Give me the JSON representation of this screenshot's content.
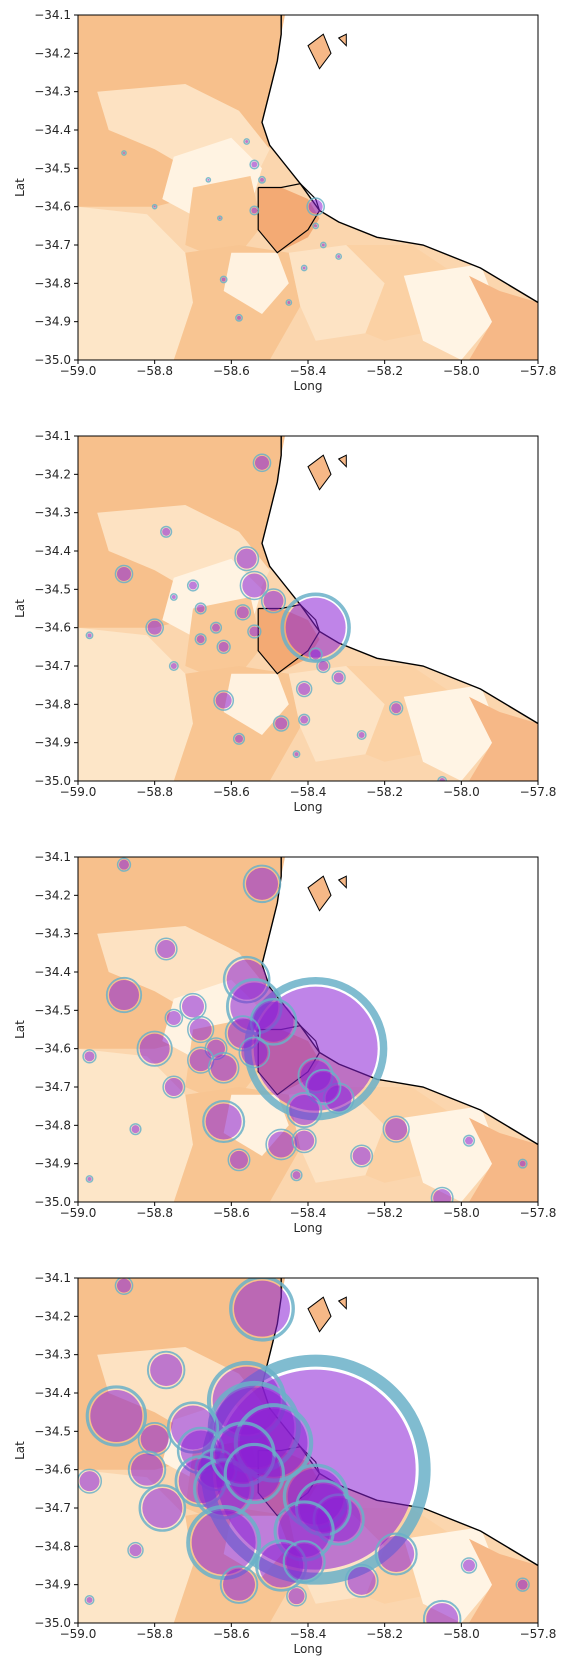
{
  "chart_data": [
    {
      "type": "scatter",
      "xlabel": "Long",
      "ylabel": "Lat",
      "xlim": [
        -59.0,
        -57.8
      ],
      "ylim": [
        -35.0,
        -34.1
      ],
      "xticks": [
        "−59.0",
        "−58.8",
        "−58.6",
        "−58.4",
        "−58.2",
        "−58.0",
        "−57.8"
      ],
      "yticks": [
        "−34.1",
        "−34.2",
        "−34.3",
        "−34.4",
        "−34.5",
        "−34.6",
        "−34.7",
        "−34.8",
        "−34.9",
        "−35.0"
      ],
      "bubbles": [
        {
          "x": -58.38,
          "y": -34.6,
          "r": 7
        },
        {
          "x": -58.54,
          "y": -34.49,
          "r": 3
        },
        {
          "x": -58.54,
          "y": -34.61,
          "r": 3
        },
        {
          "x": -58.58,
          "y": -34.89,
          "r": 2
        },
        {
          "x": -58.62,
          "y": -34.79,
          "r": 2
        },
        {
          "x": -58.52,
          "y": -34.53,
          "r": 2
        },
        {
          "x": -58.56,
          "y": -34.43,
          "r": 1.5
        },
        {
          "x": -58.38,
          "y": -34.65,
          "r": 1.5
        },
        {
          "x": -58.32,
          "y": -34.73,
          "r": 1.5
        },
        {
          "x": -58.36,
          "y": -34.7,
          "r": 1.5
        },
        {
          "x": -58.45,
          "y": -34.85,
          "r": 1.5
        },
        {
          "x": -58.41,
          "y": -34.76,
          "r": 1.5
        },
        {
          "x": -58.88,
          "y": -34.46,
          "r": 1
        },
        {
          "x": -58.8,
          "y": -34.6,
          "r": 1
        },
        {
          "x": -58.63,
          "y": -34.63,
          "r": 1
        },
        {
          "x": -58.66,
          "y": -34.53,
          "r": 1
        }
      ]
    },
    {
      "type": "scatter",
      "xlabel": "Long",
      "ylabel": "Lat",
      "xlim": [
        -59.0,
        -57.8
      ],
      "ylim": [
        -35.0,
        -34.1
      ],
      "xticks": [
        "−59.0",
        "−58.8",
        "−58.6",
        "−58.4",
        "−58.2",
        "−58.0",
        "−57.8"
      ],
      "yticks": [
        "−34.1",
        "−34.2",
        "−34.3",
        "−34.4",
        "−34.5",
        "−34.6",
        "−34.7",
        "−34.8",
        "−34.9",
        "−35.0"
      ],
      "bubbles": [
        {
          "x": -58.38,
          "y": -34.6,
          "r": 30
        },
        {
          "x": -58.52,
          "y": -34.17,
          "r": 7
        },
        {
          "x": -58.77,
          "y": -34.35,
          "r": 4
        },
        {
          "x": -58.56,
          "y": -34.42,
          "r": 10
        },
        {
          "x": -58.54,
          "y": -34.49,
          "r": 12
        },
        {
          "x": -58.49,
          "y": -34.53,
          "r": 10
        },
        {
          "x": -58.88,
          "y": -34.46,
          "r": 7
        },
        {
          "x": -58.8,
          "y": -34.6,
          "r": 7
        },
        {
          "x": -58.7,
          "y": -34.49,
          "r": 4
        },
        {
          "x": -58.68,
          "y": -34.55,
          "r": 4
        },
        {
          "x": -58.64,
          "y": -34.6,
          "r": 4
        },
        {
          "x": -58.68,
          "y": -34.63,
          "r": 4
        },
        {
          "x": -58.62,
          "y": -34.65,
          "r": 5
        },
        {
          "x": -58.57,
          "y": -34.56,
          "r": 6
        },
        {
          "x": -58.54,
          "y": -34.61,
          "r": 5
        },
        {
          "x": -58.38,
          "y": -34.67,
          "r": 5
        },
        {
          "x": -58.32,
          "y": -34.73,
          "r": 5
        },
        {
          "x": -58.36,
          "y": -34.7,
          "r": 5
        },
        {
          "x": -58.41,
          "y": -34.76,
          "r": 6
        },
        {
          "x": -58.62,
          "y": -34.79,
          "r": 8
        },
        {
          "x": -58.47,
          "y": -34.85,
          "r": 6
        },
        {
          "x": -58.41,
          "y": -34.84,
          "r": 4
        },
        {
          "x": -58.58,
          "y": -34.89,
          "r": 4
        },
        {
          "x": -58.17,
          "y": -34.81,
          "r": 5
        },
        {
          "x": -58.26,
          "y": -34.88,
          "r": 3
        },
        {
          "x": -58.75,
          "y": -34.52,
          "r": 2
        },
        {
          "x": -58.75,
          "y": -34.7,
          "r": 3
        },
        {
          "x": -58.05,
          "y": -35.0,
          "r": 3
        },
        {
          "x": -58.97,
          "y": -34.62,
          "r": 2
        },
        {
          "x": -58.43,
          "y": -34.93,
          "r": 2
        }
      ]
    },
    {
      "type": "scatter",
      "xlabel": "Long",
      "ylabel": "Lat",
      "xlim": [
        -59.0,
        -57.8
      ],
      "ylim": [
        -35.0,
        -34.1
      ],
      "xticks": [
        "−59.0",
        "−58.8",
        "−58.6",
        "−58.4",
        "−58.2",
        "−58.0",
        "−57.8"
      ],
      "yticks": [
        "−34.1",
        "−34.2",
        "−34.3",
        "−34.4",
        "−34.5",
        "−34.6",
        "−34.7",
        "−34.8",
        "−34.9",
        "−35.0"
      ],
      "bubbles": [
        {
          "x": -58.38,
          "y": -34.6,
          "r": 62
        },
        {
          "x": -58.52,
          "y": -34.17,
          "r": 16
        },
        {
          "x": -58.88,
          "y": -34.12,
          "r": 5
        },
        {
          "x": -58.77,
          "y": -34.34,
          "r": 9
        },
        {
          "x": -58.56,
          "y": -34.42,
          "r": 20
        },
        {
          "x": -58.54,
          "y": -34.49,
          "r": 24
        },
        {
          "x": -58.49,
          "y": -34.53,
          "r": 20
        },
        {
          "x": -58.88,
          "y": -34.46,
          "r": 15
        },
        {
          "x": -58.8,
          "y": -34.6,
          "r": 15
        },
        {
          "x": -58.7,
          "y": -34.49,
          "r": 11
        },
        {
          "x": -58.68,
          "y": -34.55,
          "r": 11
        },
        {
          "x": -58.64,
          "y": -34.6,
          "r": 9
        },
        {
          "x": -58.68,
          "y": -34.63,
          "r": 11
        },
        {
          "x": -58.62,
          "y": -34.65,
          "r": 13
        },
        {
          "x": -58.57,
          "y": -34.56,
          "r": 15
        },
        {
          "x": -58.54,
          "y": -34.61,
          "r": 13
        },
        {
          "x": -58.75,
          "y": -34.52,
          "r": 7
        },
        {
          "x": -58.75,
          "y": -34.7,
          "r": 9
        },
        {
          "x": -58.38,
          "y": -34.67,
          "r": 15
        },
        {
          "x": -58.32,
          "y": -34.73,
          "r": 13
        },
        {
          "x": -58.36,
          "y": -34.7,
          "r": 15
        },
        {
          "x": -58.41,
          "y": -34.76,
          "r": 15
        },
        {
          "x": -58.62,
          "y": -34.79,
          "r": 18
        },
        {
          "x": -58.47,
          "y": -34.85,
          "r": 13
        },
        {
          "x": -58.41,
          "y": -34.84,
          "r": 10
        },
        {
          "x": -58.58,
          "y": -34.89,
          "r": 9
        },
        {
          "x": -58.17,
          "y": -34.81,
          "r": 11
        },
        {
          "x": -58.26,
          "y": -34.88,
          "r": 9
        },
        {
          "x": -58.97,
          "y": -34.62,
          "r": 5
        },
        {
          "x": -58.85,
          "y": -34.81,
          "r": 4
        },
        {
          "x": -58.43,
          "y": -34.93,
          "r": 4
        },
        {
          "x": -58.05,
          "y": -34.99,
          "r": 9
        },
        {
          "x": -57.98,
          "y": -34.84,
          "r": 4
        },
        {
          "x": -57.84,
          "y": -34.9,
          "r": 3
        },
        {
          "x": -58.97,
          "y": -34.94,
          "r": 2
        }
      ]
    },
    {
      "type": "scatter",
      "xlabel": "Long",
      "ylabel": "Lat",
      "xlim": [
        -59.0,
        -57.8
      ],
      "ylim": [
        -35.0,
        -34.1
      ],
      "xticks": [
        "−59.0",
        "−58.8",
        "−58.6",
        "−58.4",
        "−58.2",
        "−58.0",
        "−57.8"
      ],
      "yticks": [
        "−34.1",
        "−34.2",
        "−34.3",
        "−34.4",
        "−34.5",
        "−34.6",
        "−34.7",
        "−34.8",
        "−34.9",
        "−35.0"
      ],
      "bubbles": [
        {
          "x": -58.38,
          "y": -34.6,
          "r": 100
        },
        {
          "x": -58.52,
          "y": -34.18,
          "r": 28
        },
        {
          "x": -58.88,
          "y": -34.12,
          "r": 7
        },
        {
          "x": -58.77,
          "y": -34.34,
          "r": 16
        },
        {
          "x": -58.56,
          "y": -34.42,
          "r": 34
        },
        {
          "x": -58.54,
          "y": -34.49,
          "r": 40
        },
        {
          "x": -58.49,
          "y": -34.53,
          "r": 34
        },
        {
          "x": -58.9,
          "y": -34.46,
          "r": 26
        },
        {
          "x": -58.8,
          "y": -34.52,
          "r": 14
        },
        {
          "x": -58.7,
          "y": -34.49,
          "r": 22
        },
        {
          "x": -58.68,
          "y": -34.55,
          "r": 20
        },
        {
          "x": -58.64,
          "y": -34.6,
          "r": 18
        },
        {
          "x": -58.68,
          "y": -34.63,
          "r": 22
        },
        {
          "x": -58.62,
          "y": -34.65,
          "r": 26
        },
        {
          "x": -58.57,
          "y": -34.56,
          "r": 28
        },
        {
          "x": -58.54,
          "y": -34.61,
          "r": 26
        },
        {
          "x": -58.82,
          "y": -34.6,
          "r": 16
        },
        {
          "x": -58.78,
          "y": -34.7,
          "r": 20
        },
        {
          "x": -58.38,
          "y": -34.67,
          "r": 28
        },
        {
          "x": -58.32,
          "y": -34.73,
          "r": 22
        },
        {
          "x": -58.36,
          "y": -34.7,
          "r": 24
        },
        {
          "x": -58.41,
          "y": -34.76,
          "r": 26
        },
        {
          "x": -58.62,
          "y": -34.79,
          "r": 32
        },
        {
          "x": -58.47,
          "y": -34.85,
          "r": 22
        },
        {
          "x": -58.41,
          "y": -34.84,
          "r": 18
        },
        {
          "x": -58.58,
          "y": -34.9,
          "r": 16
        },
        {
          "x": -58.17,
          "y": -34.82,
          "r": 18
        },
        {
          "x": -58.26,
          "y": -34.89,
          "r": 14
        },
        {
          "x": -58.97,
          "y": -34.63,
          "r": 10
        },
        {
          "x": -58.85,
          "y": -34.81,
          "r": 6
        },
        {
          "x": -58.43,
          "y": -34.93,
          "r": 8
        },
        {
          "x": -58.05,
          "y": -34.99,
          "r": 16
        },
        {
          "x": -57.98,
          "y": -34.85,
          "r": 6
        },
        {
          "x": -57.84,
          "y": -34.9,
          "r": 5
        },
        {
          "x": -58.97,
          "y": -34.94,
          "r": 3
        }
      ]
    }
  ]
}
